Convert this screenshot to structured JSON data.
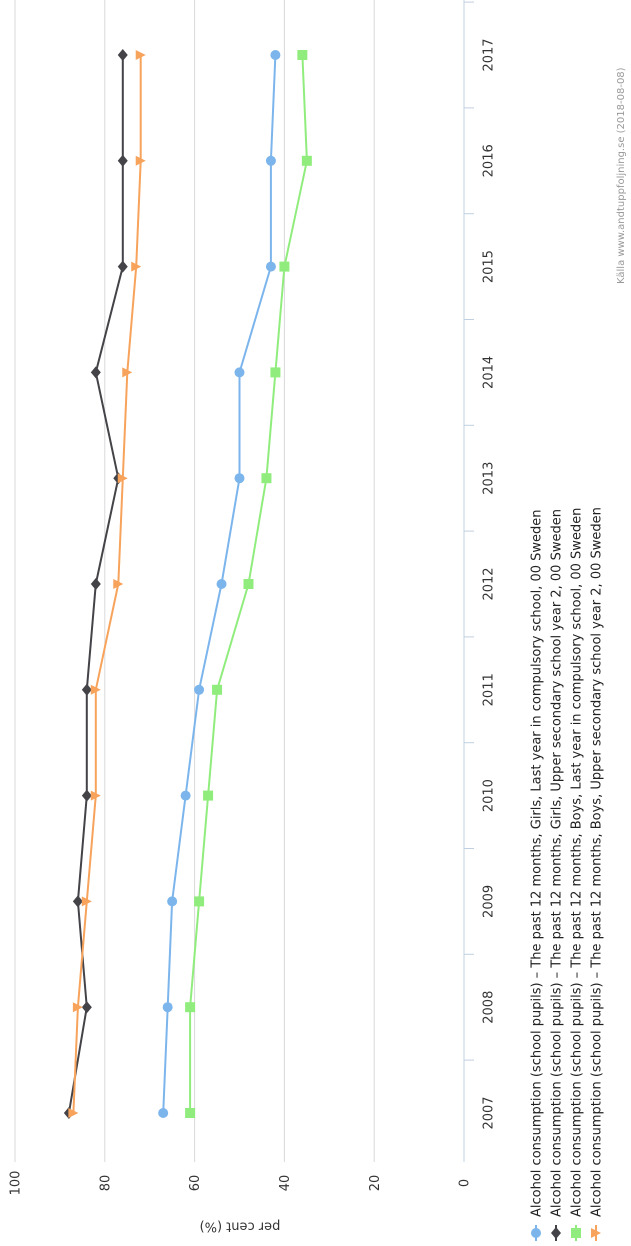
{
  "chart_data": {
    "type": "line",
    "ylabel": "per cent (%)",
    "ylim": [
      0,
      100
    ],
    "yticks": [
      0,
      20,
      40,
      60,
      80,
      100
    ],
    "categories": [
      "2007",
      "2008",
      "2009",
      "2010",
      "2011",
      "2012",
      "2013",
      "2014",
      "2015",
      "2016",
      "2017"
    ],
    "series": [
      {
        "name": "Alcohol consumption (school pupils) – The past 12 months, Girls, Last year in compulsory school, 00 Sweden",
        "color": "#7cb5ec",
        "marker": "circle",
        "values": [
          67,
          66,
          65,
          62,
          59,
          54,
          50,
          50,
          43,
          43,
          42
        ]
      },
      {
        "name": "Alcohol consumption (school pupils) – The past 12 months, Girls, Upper secondary school year 2, 00 Sweden",
        "color": "#434348",
        "marker": "diamond",
        "values": [
          88,
          84,
          86,
          84,
          84,
          82,
          77,
          82,
          76,
          76,
          76
        ]
      },
      {
        "name": "Alcohol consumption (school pupils) – The past 12 months, Boys, Last year in compulsory school, 00 Sweden",
        "color": "#90ed7d",
        "marker": "square",
        "values": [
          61,
          61,
          59,
          57,
          55,
          48,
          44,
          42,
          40,
          35,
          36
        ]
      },
      {
        "name": "Alcohol consumption (school pupils) – The past 12 months, Boys, Upper secondary school year 2, 00 Sweden",
        "color": "#f7a35c",
        "marker": "triangle",
        "values": [
          87,
          86,
          84,
          82,
          82,
          77,
          76,
          75,
          73,
          72,
          72
        ]
      }
    ],
    "grid": true,
    "legend_position": "bottom",
    "credit": "Källa www.andtuppfoljning.se (2018-08-08)"
  }
}
